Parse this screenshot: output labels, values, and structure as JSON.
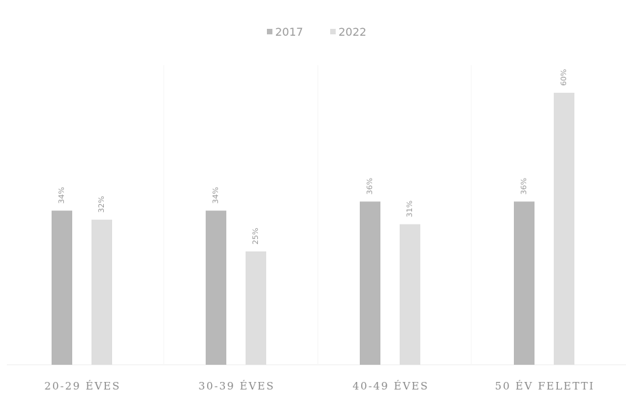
{
  "chart_data": {
    "type": "bar",
    "categories": [
      "20-29 ÉVES",
      "30-39 ÉVES",
      "40-49 ÉVES",
      "50 ÉV FELETTI"
    ],
    "series": [
      {
        "name": "2017",
        "color": "#b8b8b8",
        "values": [
          34,
          34,
          36,
          36
        ],
        "labels": [
          "34%",
          "34%",
          "36%",
          "36%"
        ]
      },
      {
        "name": "2022",
        "color": "#dedede",
        "values": [
          32,
          25,
          31,
          60
        ],
        "labels": [
          "32%",
          "25%",
          "31%",
          "60%"
        ]
      }
    ],
    "title": "",
    "xlabel": "",
    "ylabel": "",
    "ylim": [
      0,
      70
    ],
    "grid": false,
    "legend_position": "top"
  }
}
